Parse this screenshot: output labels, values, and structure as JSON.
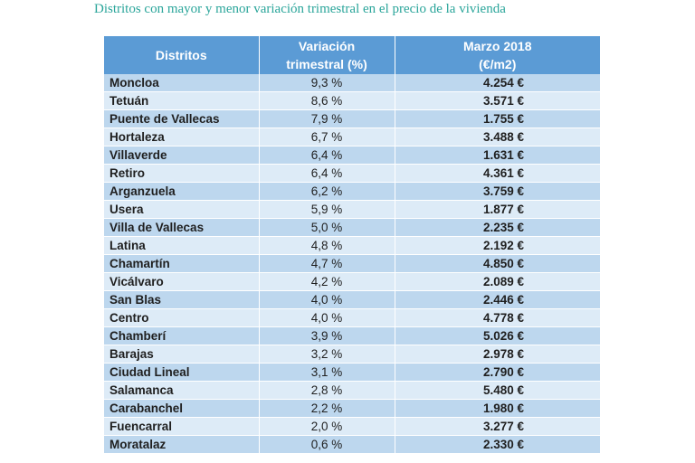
{
  "title": "Distritos con mayor y menor variación trimestral en el precio de la vivienda",
  "colors": {
    "title": "#2aa59a",
    "header_bg": "#5b9bd5",
    "row_odd": "#bdd7ee",
    "row_even": "#ddebf7"
  },
  "chart_data": {
    "type": "table",
    "columns": [
      "Distritos",
      "Variación trimestral (%)",
      "Marzo 2018 (€/m2)"
    ],
    "header_lines": [
      [
        "Distritos"
      ],
      [
        "Variación",
        "trimestral (%)"
      ],
      [
        "Marzo 2018",
        "(€/m2)"
      ]
    ],
    "rows": [
      [
        "Moncloa",
        "9,3 %",
        "4.254 €"
      ],
      [
        "Tetuán",
        "8,6 %",
        "3.571 €"
      ],
      [
        "Puente de Vallecas",
        "7,9 %",
        "1.755 €"
      ],
      [
        "Hortaleza",
        "6,7 %",
        "3.488 €"
      ],
      [
        "Villaverde",
        "6,4 %",
        "1.631 €"
      ],
      [
        "Retiro",
        "6,4 %",
        "4.361 €"
      ],
      [
        "Arganzuela",
        "6,2 %",
        "3.759 €"
      ],
      [
        "Usera",
        "5,9 %",
        "1.877 €"
      ],
      [
        "Villa de Vallecas",
        "5,0 %",
        "2.235 €"
      ],
      [
        "Latina",
        "4,8 %",
        "2.192 €"
      ],
      [
        "Chamartín",
        "4,7 %",
        "4.850 €"
      ],
      [
        "Vicálvaro",
        "4,2 %",
        "2.089 €"
      ],
      [
        "San Blas",
        "4,0 %",
        "2.446 €"
      ],
      [
        "Centro",
        "4,0 %",
        "4.778 €"
      ],
      [
        "Chamberí",
        "3,9 %",
        "5.026 €"
      ],
      [
        "Barajas",
        "3,2 %",
        "2.978 €"
      ],
      [
        "Ciudad Lineal",
        "3,1 %",
        "2.790 €"
      ],
      [
        "Salamanca",
        "2,8 %",
        "5.480 €"
      ],
      [
        "Carabanchel",
        "2,2 %",
        "1.980 €"
      ],
      [
        "Fuencarral",
        "2,0 %",
        "3.277 €"
      ],
      [
        "Moratalaz",
        "0,6 %",
        "2.330 €"
      ]
    ]
  }
}
